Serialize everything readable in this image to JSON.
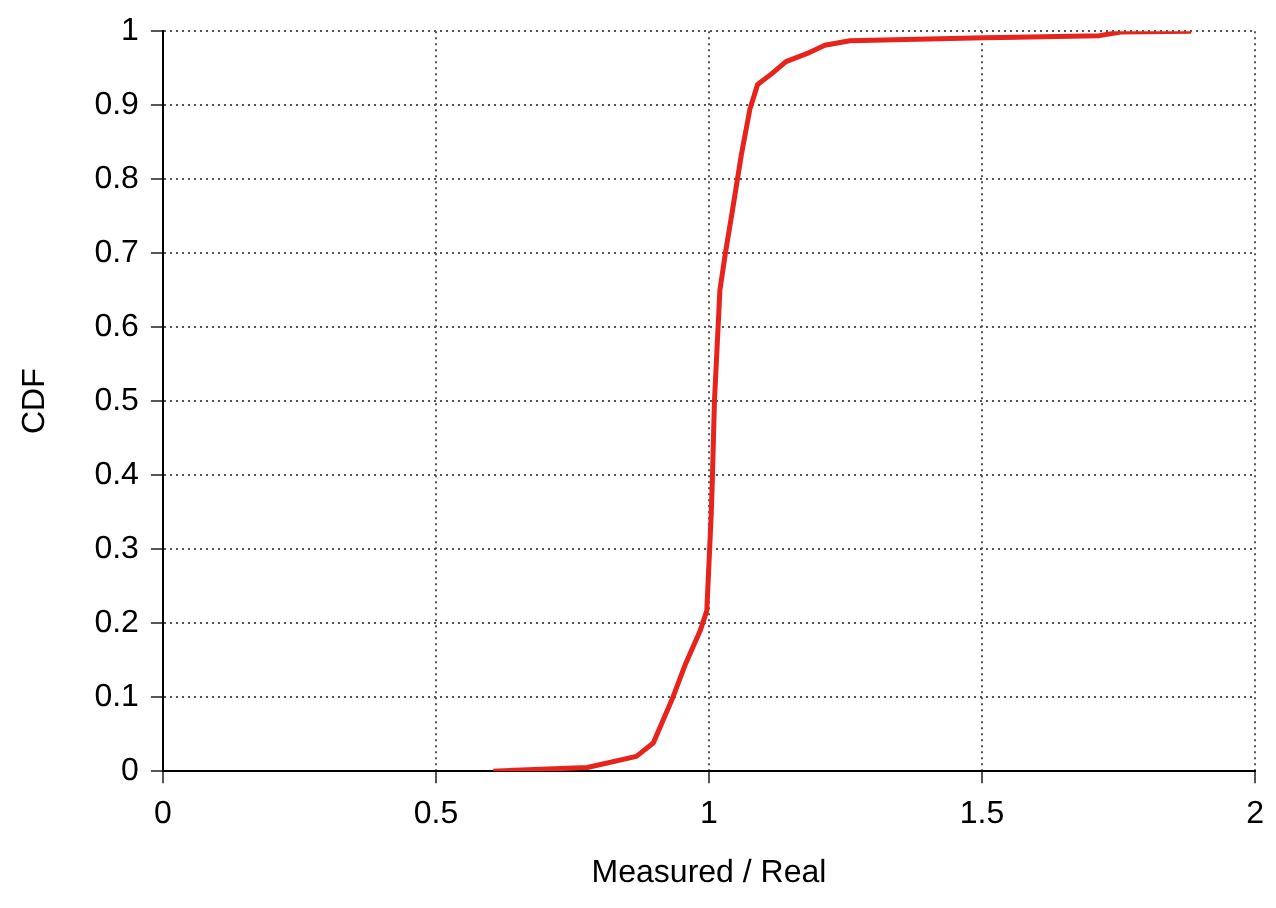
{
  "chart_data": {
    "type": "line",
    "xlabel": "Measured / Real",
    "ylabel": "CDF",
    "x": [
      0.605,
      0.777,
      0.867,
      0.898,
      0.934,
      0.957,
      0.984,
      0.996,
      1.004,
      1.006,
      1.01,
      1.02,
      1.03,
      1.043,
      1.059,
      1.075,
      1.089,
      1.114,
      1.141,
      1.18,
      1.212,
      1.258,
      1.504,
      1.715,
      1.754,
      1.883
    ],
    "series": [
      {
        "color": "#e8231c",
        "values": [
          0,
          0.005,
          0.02,
          0.038,
          0.1,
          0.145,
          0.19,
          0.217,
          0.346,
          0.39,
          0.5,
          0.65,
          0.7,
          0.758,
          0.832,
          0.895,
          0.928,
          0.942,
          0.959,
          0.97,
          0.981,
          0.987,
          0.991,
          0.994,
          0.999,
          1
        ]
      }
    ],
    "xlim": [
      0,
      2
    ],
    "xticks": [
      0,
      0.5,
      1,
      1.5,
      2
    ],
    "ylim": [
      0,
      1
    ],
    "yticks": [
      0,
      0.1,
      0.2,
      0.3,
      0.4,
      0.5,
      0.6,
      0.7,
      0.8,
      0.9,
      1
    ],
    "grid": true,
    "legend": false,
    "marker": "none",
    "line_style": "solid"
  }
}
